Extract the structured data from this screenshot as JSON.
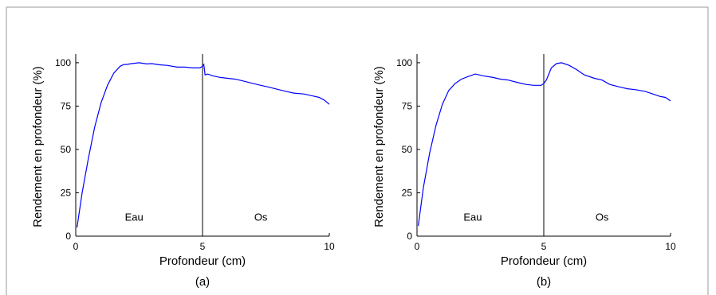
{
  "chart_data": [
    {
      "type": "line",
      "caption": "(a)",
      "xlabel": "Profondeur (cm)",
      "ylabel": "Rendement en profondeur (%)",
      "xlim": [
        0,
        10
      ],
      "ylim": [
        0,
        105
      ],
      "xticks": [
        0,
        5,
        10
      ],
      "yticks": [
        0,
        25,
        50,
        75,
        100
      ],
      "grid": false,
      "interface_x": 5,
      "regions": [
        {
          "label": "Eau",
          "x": 2.3,
          "y": 9
        },
        {
          "label": "Os",
          "x": 7.3,
          "y": 9
        }
      ],
      "series": [
        {
          "color": "#0000ff",
          "x": [
            0.05,
            0.25,
            0.5,
            0.75,
            1.0,
            1.25,
            1.5,
            1.75,
            1.9,
            2.0,
            2.2,
            2.5,
            2.8,
            3.0,
            3.3,
            3.6,
            4.0,
            4.3,
            4.6,
            4.9,
            5.0,
            5.05,
            5.1,
            5.2,
            5.4,
            5.7,
            6.0,
            6.3,
            6.6,
            7.0,
            7.3,
            7.6,
            8.0,
            8.3,
            8.6,
            9.0,
            9.3,
            9.6,
            9.8,
            10.0
          ],
          "y": [
            5,
            25,
            45,
            63,
            77,
            87,
            94,
            98,
            99,
            99,
            99.5,
            100,
            99.3,
            99.5,
            98.8,
            98.5,
            97.5,
            97.5,
            97,
            97,
            98,
            99,
            93,
            93.5,
            92.5,
            91.5,
            91,
            90.5,
            89.5,
            88,
            87,
            86,
            84.5,
            83.5,
            82.5,
            82,
            81,
            80,
            78.5,
            76
          ]
        }
      ]
    },
    {
      "type": "line",
      "caption": "(b)",
      "xlabel": "Profondeur (cm)",
      "ylabel": "Rendement en profondeur (%)",
      "xlim": [
        0,
        10
      ],
      "ylim": [
        0,
        105
      ],
      "xticks": [
        0,
        5,
        10
      ],
      "yticks": [
        0,
        25,
        50,
        75,
        100
      ],
      "grid": false,
      "interface_x": 5,
      "regions": [
        {
          "label": "Eau",
          "x": 2.2,
          "y": 9
        },
        {
          "label": "Os",
          "x": 7.3,
          "y": 9
        }
      ],
      "series": [
        {
          "color": "#0000ff",
          "x": [
            0.05,
            0.25,
            0.5,
            0.75,
            1.0,
            1.25,
            1.5,
            1.75,
            2.0,
            2.3,
            2.6,
            3.0,
            3.3,
            3.6,
            4.0,
            4.3,
            4.6,
            4.9,
            5.0,
            5.1,
            5.3,
            5.5,
            5.7,
            6.0,
            6.3,
            6.6,
            7.0,
            7.3,
            7.6,
            8.0,
            8.3,
            8.6,
            9.0,
            9.3,
            9.6,
            9.8,
            10.0
          ],
          "y": [
            6,
            28,
            48,
            64,
            76,
            84,
            88,
            90.5,
            92,
            93.5,
            92.5,
            91.5,
            90.5,
            90,
            88.5,
            87.5,
            87,
            87,
            88,
            90,
            97,
            99.5,
            100,
            98.5,
            96,
            93,
            91,
            90,
            87.5,
            86,
            85,
            84.5,
            83.5,
            82,
            80.5,
            80,
            78
          ]
        }
      ]
    }
  ]
}
